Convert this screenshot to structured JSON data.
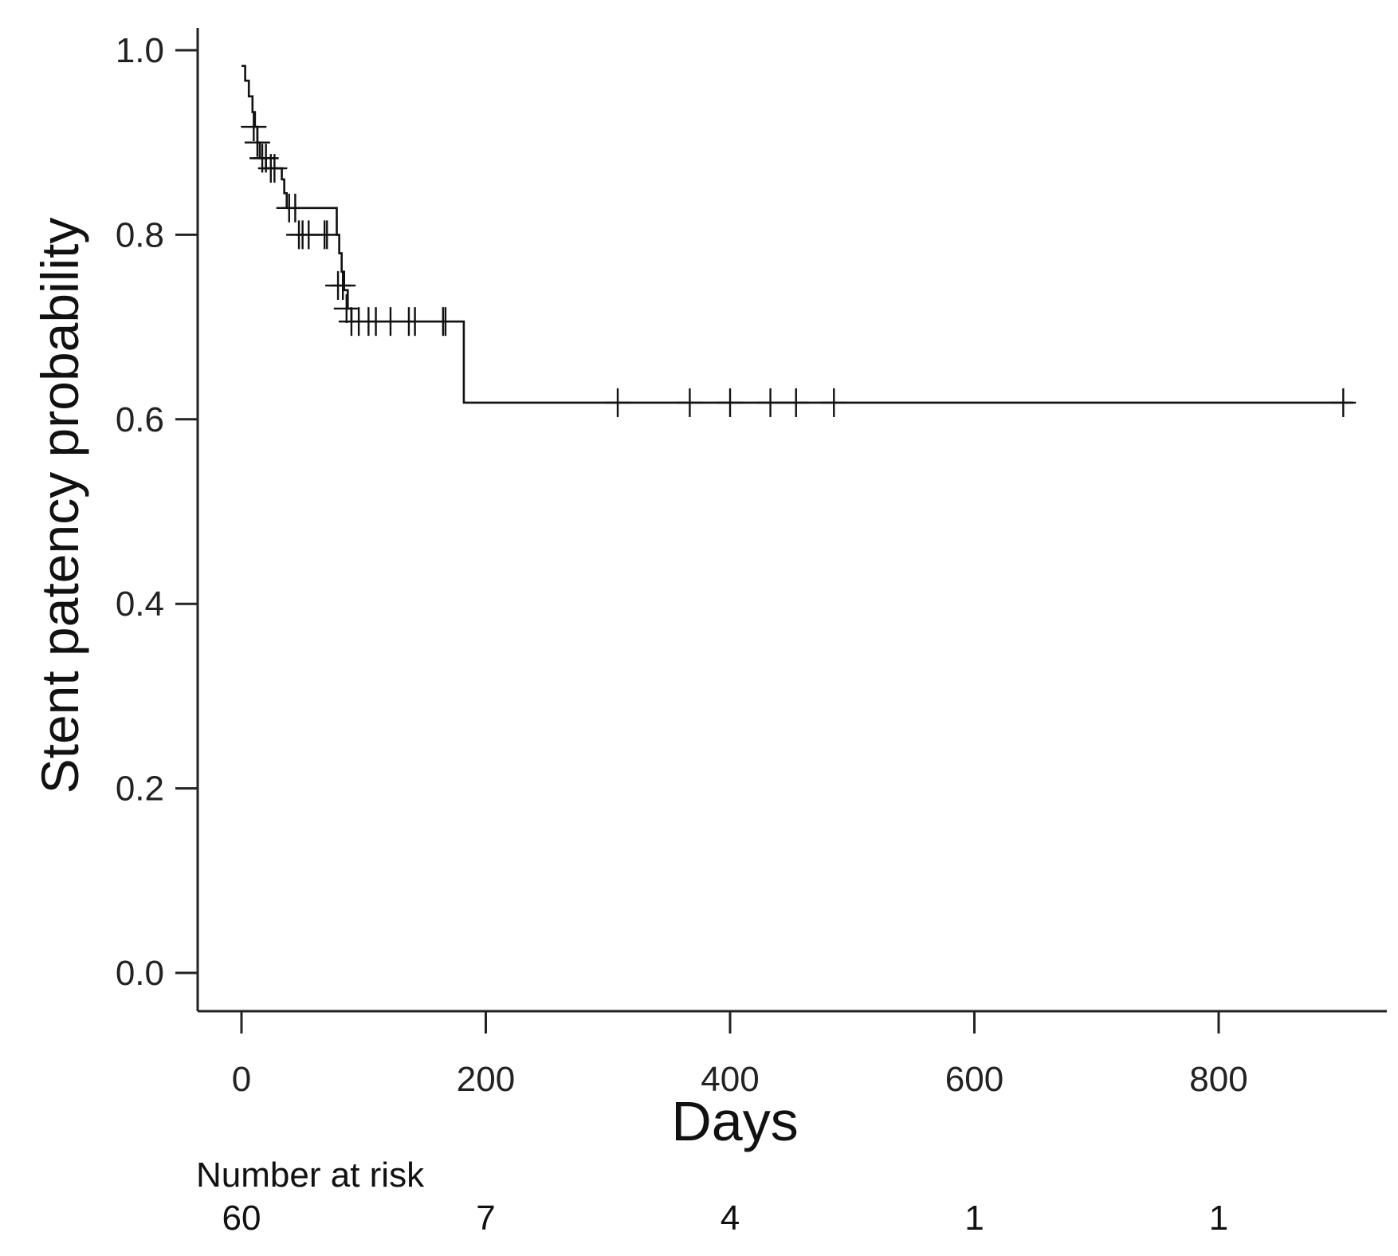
{
  "chart_data": {
    "type": "line",
    "subtype": "kaplan-meier",
    "title": "",
    "xlabel": "Days",
    "ylabel": "Stent patency probability",
    "xlim": [
      -35,
      935
    ],
    "ylim": [
      -0.08,
      1.05
    ],
    "x_ticks": [
      0,
      200,
      400,
      600,
      800
    ],
    "y_ticks": [
      0.0,
      0.2,
      0.4,
      0.6,
      0.8,
      1.0
    ],
    "x_tick_labels": [
      "0",
      "200",
      "400",
      "600",
      "800"
    ],
    "y_tick_labels": [
      "0.0",
      "0.2",
      "0.4",
      "0.6",
      "0.8",
      "1.0"
    ],
    "grid": false,
    "legend": "none",
    "line_color": "#111111",
    "series": [
      {
        "steps": [
          [
            0,
            0.983
          ],
          [
            3,
            0.967
          ],
          [
            6,
            0.95
          ],
          [
            9,
            0.933
          ],
          [
            11,
            0.917
          ],
          [
            13,
            0.9
          ],
          [
            15,
            0.883
          ],
          [
            20,
            0.872
          ],
          [
            33,
            0.86
          ],
          [
            35,
            0.845
          ],
          [
            37,
            0.829
          ],
          [
            78,
            0.8
          ],
          [
            80,
            0.78
          ],
          [
            82,
            0.76
          ],
          [
            84,
            0.74
          ],
          [
            87,
            0.72
          ],
          [
            90,
            0.706
          ],
          [
            182,
            0.618
          ],
          [
            910,
            0.618
          ]
        ],
        "censored": [
          [
            10,
            0.917
          ],
          [
            13,
            0.9
          ],
          [
            17,
            0.883
          ],
          [
            20,
            0.883
          ],
          [
            24,
            0.872
          ],
          [
            27,
            0.872
          ],
          [
            39,
            0.829
          ],
          [
            44,
            0.829
          ],
          [
            47,
            0.8
          ],
          [
            50,
            0.8
          ],
          [
            55,
            0.8
          ],
          [
            68,
            0.8
          ],
          [
            70,
            0.8
          ],
          [
            79,
            0.745
          ],
          [
            83,
            0.745
          ],
          [
            86,
            0.72
          ],
          [
            90,
            0.706
          ],
          [
            96,
            0.706
          ],
          [
            104,
            0.706
          ],
          [
            110,
            0.706
          ],
          [
            122,
            0.706
          ],
          [
            137,
            0.706
          ],
          [
            142,
            0.706
          ],
          [
            165,
            0.706
          ],
          [
            167,
            0.706
          ],
          [
            308,
            0.618
          ],
          [
            367,
            0.618
          ],
          [
            400,
            0.618
          ],
          [
            433,
            0.618
          ],
          [
            454,
            0.618
          ],
          [
            485,
            0.618
          ],
          [
            902,
            0.618
          ]
        ]
      }
    ],
    "risk_table": {
      "title": "Number at risk",
      "times": [
        0,
        200,
        400,
        600,
        800
      ],
      "values": [
        "60",
        "7",
        "4",
        "1",
        "1"
      ]
    }
  }
}
